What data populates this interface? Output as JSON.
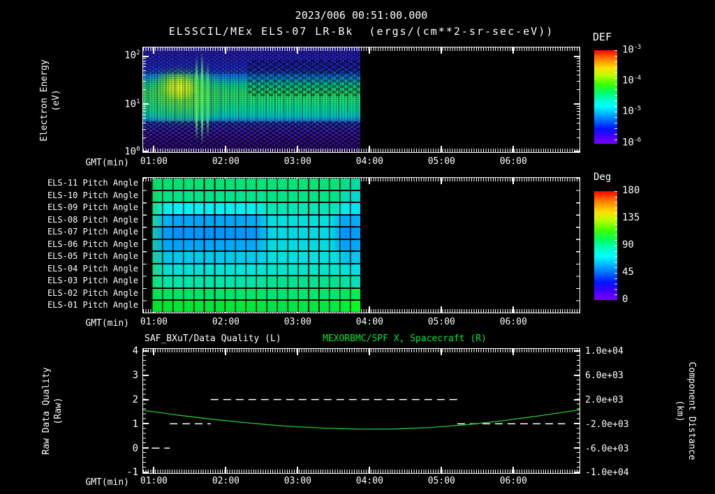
{
  "header": {
    "timestamp": "2023/006 00:51:00.000",
    "plot_title": "ELSSCIL/MEx ELS-07 LR-Bk  (ergs/(cm**2-sr-sec-eV))"
  },
  "spectrogram_panel": {
    "ylabel_line1": "Electron Energy",
    "ylabel_line2": "(eV)",
    "xlabel": "GMT(min)",
    "yticks": [
      {
        "base": "10",
        "exp": "2"
      },
      {
        "base": "10",
        "exp": "1"
      },
      {
        "base": "10",
        "exp": "0"
      }
    ],
    "colorbar": {
      "title": "DEF",
      "labels": [
        {
          "base": "10",
          "exp": "-3"
        },
        {
          "base": "10",
          "exp": "-4"
        },
        {
          "base": "10",
          "exp": "-5"
        },
        {
          "base": "10",
          "exp": "-6"
        }
      ]
    }
  },
  "pitch_panel": {
    "xlabel": "GMT(min)",
    "colorbar": {
      "title": "Deg",
      "labels": [
        "180",
        "135",
        "90",
        "45",
        "0"
      ]
    }
  },
  "quality_panel": {
    "title_left": "SAF_BXuT/Data Quality (L)",
    "title_right": "MEXORBMC/SPF X, Spacecraft (R)",
    "title_right_color": "#00e83c",
    "ylabel_line1": "Raw Data Quality",
    "ylabel_line2": "(Raw)",
    "y2label_line1": "Component Distance",
    "y2label_line2": "(km)",
    "xlabel": "GMT(min)",
    "yticks": [
      "4",
      "3",
      "2",
      "1",
      "0",
      "-1"
    ],
    "y2ticks": [
      "1.0e+04",
      "6.0e+03",
      "2.0e+03",
      "-2.0e+03",
      "-6.0e+03",
      "-1.0e+04"
    ]
  },
  "chart_data": [
    {
      "id": "electron_energy_spectrogram",
      "type": "heatmap",
      "title": "ELSSCIL/MEx ELS-07 LR-Bk",
      "units": "ergs/(cm**2-sr-sec-eV)",
      "colorbar_label": "DEF",
      "x": {
        "label": "GMT(min)",
        "start_hour": 0.85,
        "end_hour": 6.92,
        "tick_hours": [
          1,
          2,
          3,
          4,
          5,
          6
        ],
        "tick_labels": [
          "01:00",
          "02:00",
          "03:00",
          "04:00",
          "05:00",
          "06:00"
        ]
      },
      "y": {
        "label": "Electron Energy (eV)",
        "scale": "log",
        "min": 1,
        "max": 160,
        "tick_values": [
          100,
          10,
          1
        ]
      },
      "z": {
        "scale": "log",
        "min": 1e-06,
        "max": 0.001,
        "tick_values": [
          0.001,
          0.0001,
          1e-05,
          1e-06
        ]
      },
      "coverage_end_hour": 3.87,
      "features": [
        "continuous band of enhanced flux (~1e-4, green/cyan) between ~6 and 25 eV from 00:51 to 03:52",
        "intense yellow-green enhancement (~5e-4) from ~01:02 to 01:35 spanning ~8-40 eV",
        "speckled blue/purple background (~1e-6 to 1e-5) with black dropouts above ~40 eV and below ~5 eV",
        "no data (black) after ~03:52"
      ]
    },
    {
      "id": "pitch_angle_grid",
      "type": "heatmap",
      "colorbar_label": "Deg",
      "z": {
        "min": 0,
        "max": 180
      },
      "coverage_end_hour": 3.87,
      "grid_columns": 20,
      "rows": [
        {
          "label": "ELS-11 Pitch Angle",
          "deg_segments": [
            [
              0.85,
              2.5,
              100
            ],
            [
              2.5,
              3.6,
              100
            ],
            [
              3.6,
              3.87,
              95
            ]
          ],
          "stops": [
            [
              0,
              "#18d058"
            ],
            [
              0.04,
              "#00e070"
            ],
            [
              0.55,
              "#00e478"
            ],
            [
              0.9,
              "#00e478"
            ],
            [
              0.95,
              "#00dc98"
            ],
            [
              1,
              "#00d8a8"
            ]
          ]
        },
        {
          "label": "ELS-10 Pitch Angle",
          "deg_segments": [
            [
              0.85,
              2.5,
              92
            ],
            [
              2.5,
              3.6,
              93
            ],
            [
              3.6,
              3.87,
              85
            ]
          ],
          "stops": [
            [
              0,
              "#20d048"
            ],
            [
              0.04,
              "#00e486"
            ],
            [
              0.5,
              "#00e492"
            ],
            [
              0.56,
              "#00e488"
            ],
            [
              0.88,
              "#00e488"
            ],
            [
              0.94,
              "#00dcc0"
            ],
            [
              1,
              "#00d4d4"
            ]
          ]
        },
        {
          "label": "ELS-09 Pitch Angle",
          "deg_segments": [
            [
              0.85,
              2.5,
              72
            ],
            [
              2.5,
              3.6,
              85
            ],
            [
              3.6,
              3.87,
              70
            ]
          ],
          "stops": [
            [
              0,
              "#28d868"
            ],
            [
              0.05,
              "#00ecd8"
            ],
            [
              0.1,
              "#00f4f4"
            ],
            [
              0.5,
              "#00f0ee"
            ],
            [
              0.57,
              "#00e8b4"
            ],
            [
              0.88,
              "#00e8b8"
            ],
            [
              0.93,
              "#00ecf0"
            ],
            [
              1,
              "#00e0f4"
            ]
          ]
        },
        {
          "label": "ELS-08 Pitch Angle",
          "deg_segments": [
            [
              0.85,
              2.5,
              52
            ],
            [
              2.5,
              3.6,
              70
            ],
            [
              3.6,
              3.87,
              52
            ]
          ],
          "stops": [
            [
              0,
              "#28d890"
            ],
            [
              0.06,
              "#00b8f4"
            ],
            [
              0.12,
              "#00a4f8"
            ],
            [
              0.5,
              "#00a8f8"
            ],
            [
              0.57,
              "#00e0dc"
            ],
            [
              0.86,
              "#00e0dc"
            ],
            [
              0.92,
              "#00a8f8"
            ],
            [
              1,
              "#00b0f8"
            ]
          ]
        },
        {
          "label": "ELS-07 Pitch Angle",
          "deg_segments": [
            [
              0.85,
              2.5,
              45
            ],
            [
              2.5,
              3.6,
              65
            ],
            [
              3.6,
              3.87,
              46
            ]
          ],
          "stops": [
            [
              0,
              "#20c8a0"
            ],
            [
              0.06,
              "#00a0f4"
            ],
            [
              0.12,
              "#0092f8"
            ],
            [
              0.5,
              "#0098f8"
            ],
            [
              0.57,
              "#00d8e2"
            ],
            [
              0.86,
              "#00d8e2"
            ],
            [
              0.92,
              "#0096f8"
            ],
            [
              1,
              "#00a0f8"
            ]
          ]
        },
        {
          "label": "ELS-06 Pitch Angle",
          "deg_segments": [
            [
              0.85,
              2.5,
              48
            ],
            [
              2.5,
              3.6,
              67
            ],
            [
              3.6,
              3.87,
              50
            ]
          ],
          "stops": [
            [
              0,
              "#20cc92"
            ],
            [
              0.06,
              "#00a8f4"
            ],
            [
              0.12,
              "#00a2f8"
            ],
            [
              0.5,
              "#00aaf8"
            ],
            [
              0.57,
              "#00dce0"
            ],
            [
              0.86,
              "#00dce0"
            ],
            [
              0.92,
              "#00a2f8"
            ],
            [
              1,
              "#00aaf8"
            ]
          ]
        },
        {
          "label": "ELS-05 Pitch Angle",
          "deg_segments": [
            [
              0.85,
              2.5,
              58
            ],
            [
              2.5,
              3.6,
              70
            ],
            [
              3.6,
              3.87,
              60
            ]
          ],
          "stops": [
            [
              0,
              "#20d084"
            ],
            [
              0.07,
              "#00c2f2"
            ],
            [
              0.13,
              "#00c8f0"
            ],
            [
              0.5,
              "#00caf0"
            ],
            [
              0.57,
              "#00e0e0"
            ],
            [
              0.88,
              "#00e0e0"
            ],
            [
              0.93,
              "#00c2f0"
            ],
            [
              1,
              "#00c8f0"
            ]
          ]
        },
        {
          "label": "ELS-04 Pitch Angle",
          "deg_segments": [
            [
              0.85,
              2.5,
              68
            ],
            [
              2.5,
              3.6,
              73
            ],
            [
              3.6,
              3.87,
              68
            ]
          ],
          "stops": [
            [
              0,
              "#20d874"
            ],
            [
              0.07,
              "#00e0d2"
            ],
            [
              0.5,
              "#00e6d8"
            ],
            [
              0.57,
              "#00e6ca"
            ],
            [
              0.9,
              "#00e6ca"
            ],
            [
              0.95,
              "#00e0e0"
            ],
            [
              1,
              "#00e0e8"
            ]
          ]
        },
        {
          "label": "ELS-03 Pitch Angle",
          "deg_segments": [
            [
              0.85,
              2.5,
              85
            ],
            [
              2.5,
              3.6,
              90
            ],
            [
              3.6,
              3.87,
              83
            ]
          ],
          "stops": [
            [
              0,
              "#10e062"
            ],
            [
              0.06,
              "#00e6aa"
            ],
            [
              0.5,
              "#00e6aa"
            ],
            [
              0.57,
              "#00e492"
            ],
            [
              0.9,
              "#00e492"
            ],
            [
              0.95,
              "#00e4b0"
            ],
            [
              1,
              "#00dec4"
            ]
          ]
        },
        {
          "label": "ELS-02 Pitch Angle",
          "deg_segments": [
            [
              0.85,
              2.5,
              105
            ],
            [
              2.5,
              3.6,
              103
            ],
            [
              3.6,
              3.87,
              108
            ]
          ],
          "stops": [
            [
              0,
              "#00e04a"
            ],
            [
              0.06,
              "#00e262"
            ],
            [
              0.5,
              "#00e66a"
            ],
            [
              0.57,
              "#00e272"
            ],
            [
              0.9,
              "#00e86a"
            ],
            [
              0.96,
              "#00ea5c"
            ],
            [
              1,
              "#00f04a"
            ]
          ]
        },
        {
          "label": "ELS-01 Pitch Angle",
          "deg_segments": [
            [
              0.85,
              2.5,
              115
            ],
            [
              2.5,
              3.6,
              112
            ],
            [
              3.6,
              3.87,
              120
            ]
          ],
          "stops": [
            [
              0,
              "#00e022"
            ],
            [
              0.05,
              "#00e432"
            ],
            [
              0.5,
              "#00e83c"
            ],
            [
              0.57,
              "#00e24a"
            ],
            [
              0.9,
              "#00ea42"
            ],
            [
              0.96,
              "#00f82a"
            ],
            [
              1,
              "#00ff1a"
            ]
          ]
        }
      ]
    },
    {
      "id": "quality_and_distance",
      "type": "line",
      "left_axis": {
        "label": "Raw Data Quality (Raw)",
        "min": -1,
        "max": 4,
        "ticks": [
          4,
          3,
          2,
          1,
          0,
          -1
        ]
      },
      "right_axis": {
        "label": "Component Distance (km)",
        "min": -10000,
        "max": 10000,
        "ticks": [
          10000,
          6000,
          2000,
          -2000,
          -6000,
          -10000
        ]
      },
      "series": [
        {
          "name": "SAF_BXuT/Data Quality (L)",
          "axis": "left",
          "color": "#ffffff",
          "style": "dashed_step",
          "steps": [
            [
              0.97,
              1.22,
              0
            ],
            [
              1.22,
              1.79,
              1
            ],
            [
              1.79,
              5.22,
              2
            ],
            [
              5.22,
              6.72,
              1
            ]
          ]
        },
        {
          "name": "MEXORBMC/SPF X, Spacecraft (R)",
          "axis": "right",
          "color": "#22c838",
          "style": "solid",
          "points": [
            [
              0.85,
              230
            ],
            [
              1.35,
              -600
            ],
            [
              1.85,
              -1300
            ],
            [
              2.35,
              -1900
            ],
            [
              2.85,
              -2400
            ],
            [
              3.35,
              -2700
            ],
            [
              3.85,
              -2880
            ],
            [
              4.35,
              -2850
            ],
            [
              4.85,
              -2600
            ],
            [
              5.35,
              -2150
            ],
            [
              5.85,
              -1500
            ],
            [
              6.35,
              -700
            ],
            [
              6.92,
              300
            ]
          ]
        }
      ]
    }
  ]
}
